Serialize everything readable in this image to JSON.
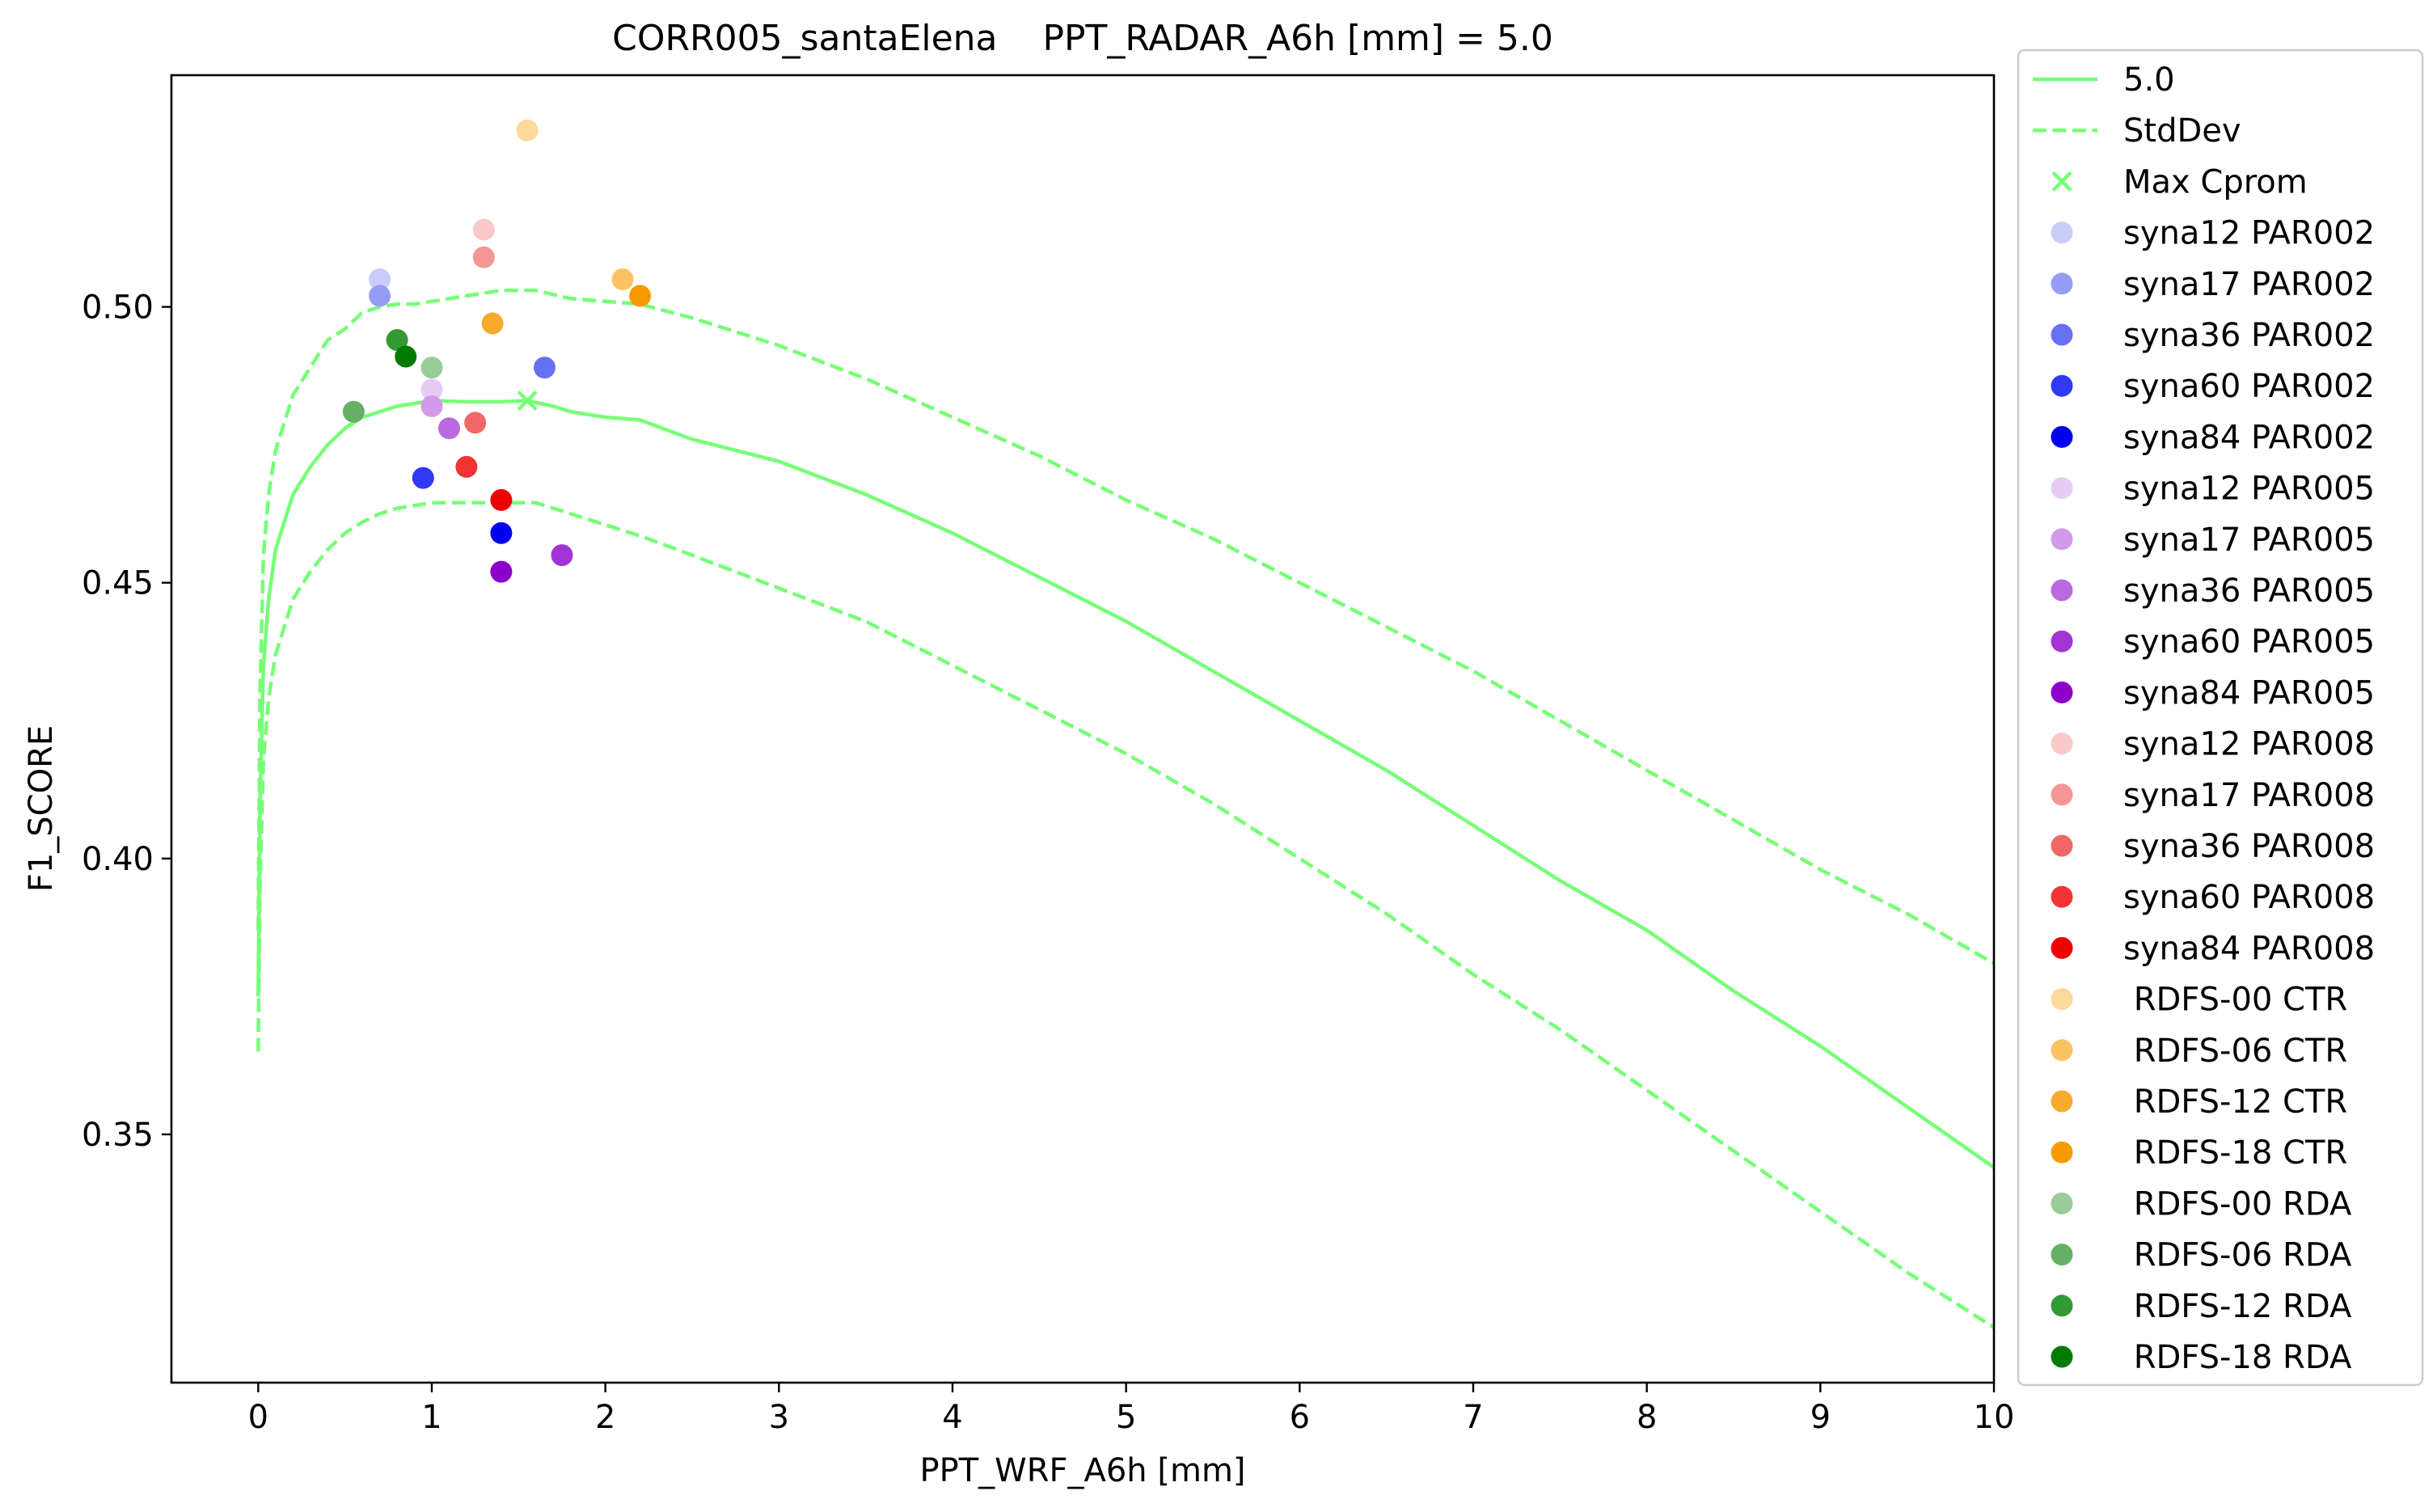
{
  "chart_data": {
    "type": "line",
    "title": "CORR005_santaElena    PPT_RADAR_A6h [mm] = 5.0",
    "xlabel": "PPT_WRF_A6h [mm]",
    "ylabel": "F1_SCORE",
    "xlim": [
      -0.5,
      10
    ],
    "ylim": [
      0.305,
      0.542
    ],
    "xticks": [
      0,
      1,
      2,
      3,
      4,
      5,
      6,
      7,
      8,
      9,
      10
    ],
    "yticks": [
      0.35,
      0.4,
      0.45,
      0.5
    ],
    "xtick_labels": [
      "0",
      "1",
      "2",
      "3",
      "4",
      "5",
      "6",
      "7",
      "8",
      "9",
      "10"
    ],
    "ytick_labels": [
      "0.35",
      "0.40",
      "0.45",
      "0.50"
    ],
    "grid": false,
    "legend_position": "outside-right",
    "curve_color": "#77ff77",
    "series": [
      {
        "name": "5.0",
        "style": "solid",
        "x": [
          0,
          0.01,
          0.03,
          0.06,
          0.1,
          0.2,
          0.3,
          0.4,
          0.5,
          0.6,
          0.7,
          0.8,
          0.9,
          1.0,
          1.2,
          1.4,
          1.55,
          1.7,
          1.8,
          2.0,
          2.2,
          2.5,
          3.0,
          3.5,
          4.0,
          4.5,
          5.0,
          5.5,
          6.0,
          6.5,
          7.0,
          7.5,
          8.0,
          8.5,
          9.0,
          9.5,
          10.0
        ],
        "y": [
          0.375,
          0.41,
          0.435,
          0.447,
          0.456,
          0.466,
          0.471,
          0.475,
          0.478,
          0.48,
          0.481,
          0.482,
          0.4825,
          0.483,
          0.4828,
          0.4828,
          0.483,
          0.482,
          0.481,
          0.48,
          0.4795,
          0.476,
          0.472,
          0.466,
          0.459,
          0.451,
          0.443,
          0.434,
          0.425,
          0.416,
          0.406,
          0.396,
          0.387,
          0.376,
          0.366,
          0.355,
          0.344
        ]
      },
      {
        "name": "StdDev",
        "style": "dashed",
        "x": [
          0,
          0.01,
          0.03,
          0.06,
          0.1,
          0.2,
          0.3,
          0.4,
          0.5,
          0.6,
          0.7,
          0.8,
          0.9,
          1.0,
          1.2,
          1.4,
          1.5,
          1.6,
          1.8,
          2.0,
          2.2,
          2.5,
          3.0,
          3.5,
          4.0,
          4.5,
          5.0,
          5.5,
          6.0,
          6.5,
          7.0,
          7.5,
          8.0,
          8.5,
          9.0,
          9.5,
          10.0
        ],
        "y": [
          0.387,
          0.43,
          0.455,
          0.466,
          0.474,
          0.484,
          0.489,
          0.494,
          0.496,
          0.499,
          0.5,
          0.5005,
          0.5005,
          0.501,
          0.502,
          0.503,
          0.503,
          0.503,
          0.5015,
          0.501,
          0.5005,
          0.498,
          0.493,
          0.487,
          0.48,
          0.473,
          0.465,
          0.458,
          0.45,
          0.442,
          0.434,
          0.425,
          0.416,
          0.407,
          0.398,
          0.39,
          0.381
        ]
      },
      {
        "name": "",
        "style": "dashed",
        "x": [
          0,
          0.01,
          0.03,
          0.06,
          0.1,
          0.2,
          0.3,
          0.4,
          0.5,
          0.6,
          0.7,
          0.8,
          0.9,
          1.0,
          1.2,
          1.4,
          1.5,
          1.6,
          1.8,
          2.0,
          2.2,
          2.5,
          3.0,
          3.5,
          4.0,
          4.5,
          5.0,
          5.5,
          6.0,
          6.5,
          7.0,
          7.5,
          8.0,
          8.5,
          9.0,
          9.5,
          10.0
        ],
        "y": [
          0.365,
          0.395,
          0.418,
          0.429,
          0.437,
          0.447,
          0.452,
          0.456,
          0.459,
          0.461,
          0.4625,
          0.4635,
          0.464,
          0.4645,
          0.4645,
          0.4645,
          0.4645,
          0.4645,
          0.4625,
          0.4605,
          0.4585,
          0.455,
          0.449,
          0.443,
          0.435,
          0.427,
          0.419,
          0.41,
          0.4,
          0.39,
          0.379,
          0.369,
          0.358,
          0.347,
          0.336,
          0.325,
          0.315
        ]
      }
    ],
    "max_marker": {
      "name": "Max Cprom",
      "x": 1.55,
      "y": 0.483,
      "color": "#77ff77"
    },
    "points": [
      {
        "name": "syna12 PAR002",
        "x": 0.7,
        "y": 0.505,
        "color": "#c8ccf9"
      },
      {
        "name": "syna17 PAR002",
        "x": 0.7,
        "y": 0.502,
        "color": "#959cf5"
      },
      {
        "name": "syna36 PAR002",
        "x": 1.65,
        "y": 0.489,
        "color": "#6770f0"
      },
      {
        "name": "syna60 PAR002",
        "x": 0.95,
        "y": 0.469,
        "color": "#3039f3"
      },
      {
        "name": "syna84 PAR002",
        "x": 1.4,
        "y": 0.459,
        "color": "#0000ee"
      },
      {
        "name": "syna12 PAR005",
        "x": 1.0,
        "y": 0.485,
        "color": "#e6ccf5"
      },
      {
        "name": "syna17 PAR005",
        "x": 1.0,
        "y": 0.482,
        "color": "#d29ae9"
      },
      {
        "name": "syna36 PAR005",
        "x": 1.1,
        "y": 0.478,
        "color": "#ba6adf"
      },
      {
        "name": "syna60 PAR005",
        "x": 1.75,
        "y": 0.455,
        "color": "#a234d6"
      },
      {
        "name": "syna84 PAR005",
        "x": 1.4,
        "y": 0.452,
        "color": "#8c00c9"
      },
      {
        "name": "syna12 PAR008",
        "x": 1.3,
        "y": 0.514,
        "color": "#f9c8c8"
      },
      {
        "name": "syna17 PAR008",
        "x": 1.3,
        "y": 0.509,
        "color": "#f59696"
      },
      {
        "name": "syna36 PAR008",
        "x": 1.25,
        "y": 0.479,
        "color": "#f06868"
      },
      {
        "name": "syna60 PAR008",
        "x": 1.2,
        "y": 0.471,
        "color": "#f03434"
      },
      {
        "name": "syna84 PAR008",
        "x": 1.4,
        "y": 0.465,
        "color": "#ee0000"
      },
      {
        "name": " RDFS-00 CTR",
        "x": 1.55,
        "y": 0.532,
        "color": "#fdd99a"
      },
      {
        "name": " RDFS-06 CTR",
        "x": 2.1,
        "y": 0.505,
        "color": "#fbc361"
      },
      {
        "name": " RDFS-12 CTR",
        "x": 1.35,
        "y": 0.497,
        "color": "#f9aa2e"
      },
      {
        "name": " RDFS-18 CTR",
        "x": 2.2,
        "y": 0.502,
        "color": "#f79a00"
      },
      {
        "name": " RDFS-00 RDA",
        "x": 1.0,
        "y": 0.489,
        "color": "#99cc99"
      },
      {
        "name": " RDFS-06 RDA",
        "x": 0.55,
        "y": 0.481,
        "color": "#66b066"
      },
      {
        "name": " RDFS-12 RDA",
        "x": 0.8,
        "y": 0.494,
        "color": "#339933"
      },
      {
        "name": " RDFS-18 RDA",
        "x": 0.85,
        "y": 0.491,
        "color": "#007a00"
      }
    ]
  }
}
